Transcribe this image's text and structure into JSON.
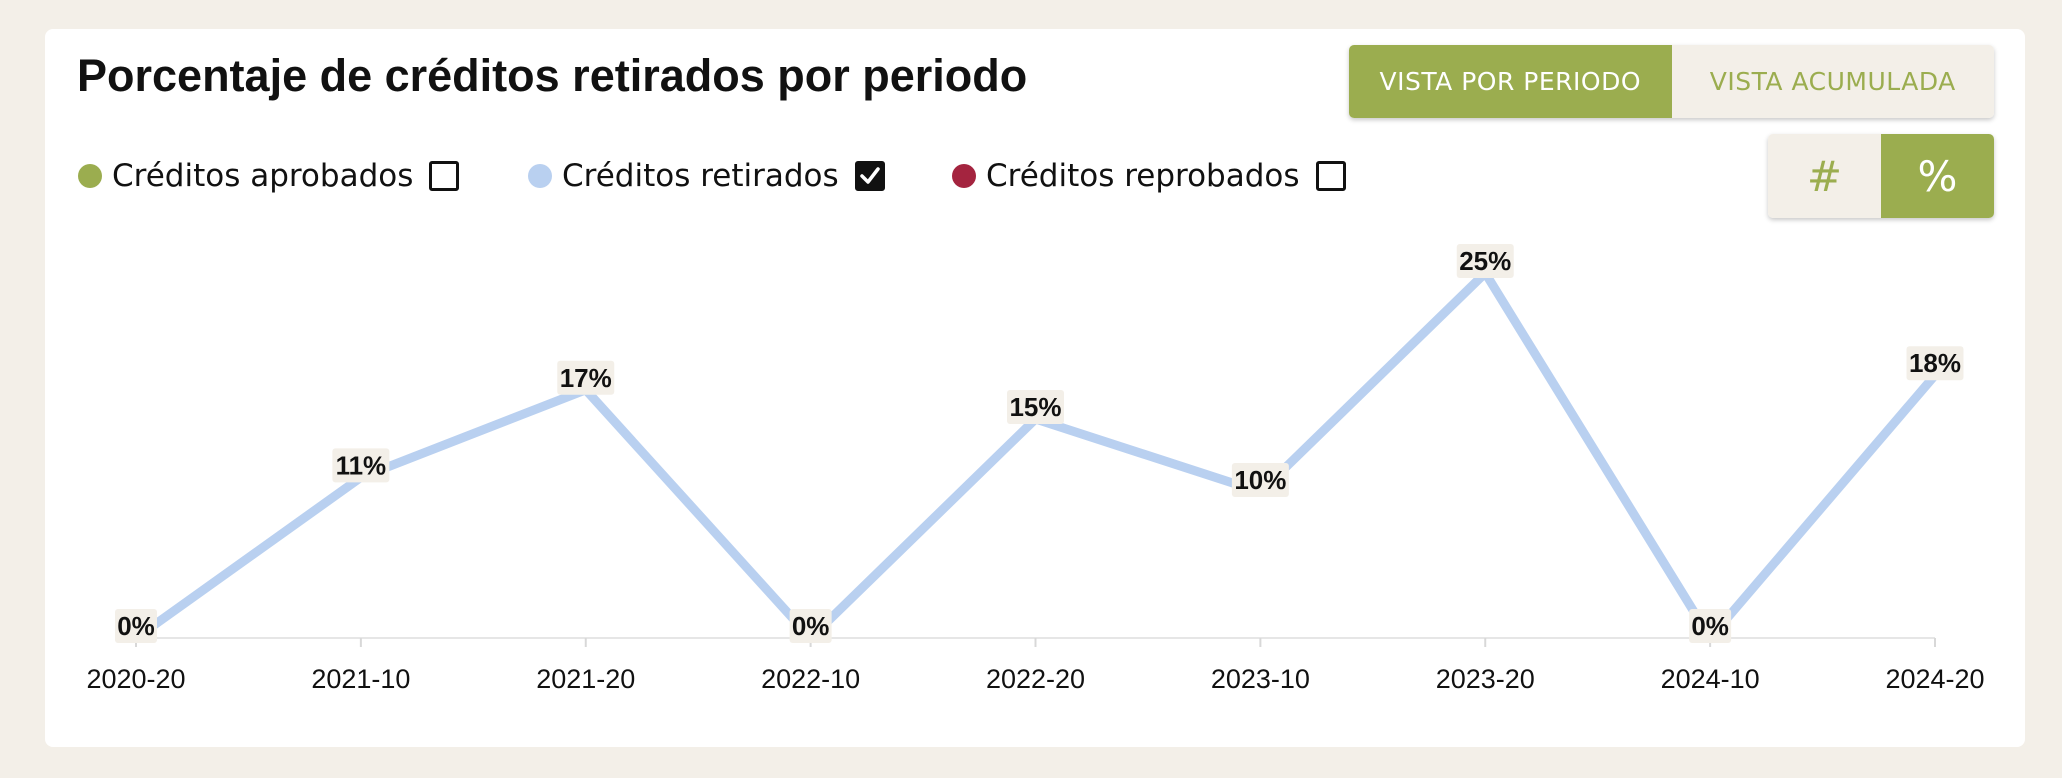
{
  "title": "Porcentaje de créditos retirados por periodo",
  "view_toggle": {
    "period": "VISTA POR PERIODO",
    "cumulative": "VISTA ACUMULADA",
    "selected": "period"
  },
  "unit_toggle": {
    "count": "#",
    "percent": "%",
    "selected": "percent"
  },
  "colors": {
    "accent": "#9bad4f",
    "approved": "#9bad4f",
    "withdrawn": "#b9d0f0",
    "failed": "#a4243f",
    "background": "#f3efe8"
  },
  "legend": [
    {
      "label": "Créditos aprobados",
      "checked": false,
      "color": "#9bad4f"
    },
    {
      "label": "Créditos retirados",
      "checked": true,
      "color": "#b9d0f0"
    },
    {
      "label": "Créditos reprobados",
      "checked": false,
      "color": "#a4243f"
    }
  ],
  "chart_data": {
    "type": "line",
    "categories": [
      "2020-20",
      "2021-10",
      "2021-20",
      "2022-10",
      "2022-20",
      "2023-10",
      "2023-20",
      "2024-10",
      "2024-20"
    ],
    "series": [
      {
        "name": "Créditos retirados",
        "values": [
          0,
          11,
          17,
          0,
          15,
          10,
          25,
          0,
          18
        ],
        "labels": [
          "0%",
          "11%",
          "17%",
          "0%",
          "15%",
          "10%",
          "25%",
          "0%",
          "18%"
        ]
      }
    ],
    "ylim": [
      0,
      25
    ],
    "grid": false,
    "xlabel": "",
    "ylabel": ""
  }
}
